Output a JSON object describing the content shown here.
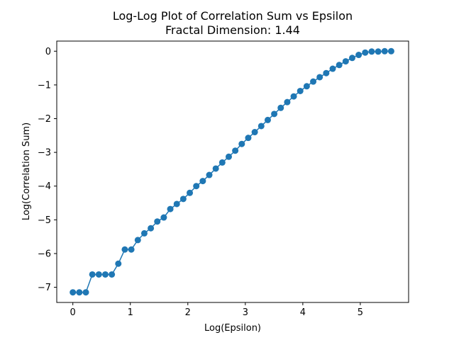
{
  "chart_data": {
    "type": "line",
    "title": "Log-Log Plot of Correlation Sum vs Epsilon",
    "subtitle": "Fractal Dimension: 1.44",
    "xlabel": "Log(Epsilon)",
    "ylabel": "Log(Correlation Sum)",
    "xlim": [
      -0.28,
      5.84
    ],
    "ylim": [
      -7.45,
      0.3
    ],
    "x_ticks": [
      0,
      1,
      2,
      3,
      4,
      5
    ],
    "y_ticks": [
      0,
      -1,
      -2,
      -3,
      -4,
      -5,
      -6,
      -7
    ],
    "x_tick_labels": [
      "0",
      "1",
      "2",
      "3",
      "4",
      "5"
    ],
    "y_tick_labels": [
      "0",
      "−1",
      "−2",
      "−3",
      "−4",
      "−5",
      "−6",
      "−7"
    ],
    "grid": false,
    "legend": "none",
    "marker": "circle",
    "series": [
      {
        "color": "#1f77b4",
        "x": [
          0.0,
          0.113,
          0.226,
          0.339,
          0.452,
          0.565,
          0.678,
          0.791,
          0.904,
          1.017,
          1.13,
          1.243,
          1.356,
          1.469,
          1.582,
          1.695,
          1.808,
          1.921,
          2.034,
          2.147,
          2.26,
          2.373,
          2.486,
          2.599,
          2.712,
          2.825,
          2.938,
          3.051,
          3.164,
          3.277,
          3.39,
          3.503,
          3.616,
          3.729,
          3.842,
          3.955,
          4.068,
          4.181,
          4.294,
          4.407,
          4.52,
          4.633,
          4.746,
          4.859,
          4.972,
          5.085,
          5.198,
          5.311,
          5.424,
          5.537
        ],
        "y": [
          -7.15,
          -7.15,
          -7.15,
          -6.62,
          -6.62,
          -6.62,
          -6.62,
          -6.3,
          -5.88,
          -5.88,
          -5.6,
          -5.4,
          -5.25,
          -5.05,
          -4.93,
          -4.68,
          -4.53,
          -4.38,
          -4.2,
          -4.0,
          -3.85,
          -3.67,
          -3.48,
          -3.3,
          -3.13,
          -2.95,
          -2.75,
          -2.57,
          -2.4,
          -2.22,
          -2.04,
          -1.86,
          -1.68,
          -1.51,
          -1.34,
          -1.18,
          -1.04,
          -0.9,
          -0.77,
          -0.65,
          -0.52,
          -0.41,
          -0.3,
          -0.2,
          -0.11,
          -0.04,
          -0.01,
          -0.01,
          0.0,
          0.0
        ]
      }
    ]
  }
}
